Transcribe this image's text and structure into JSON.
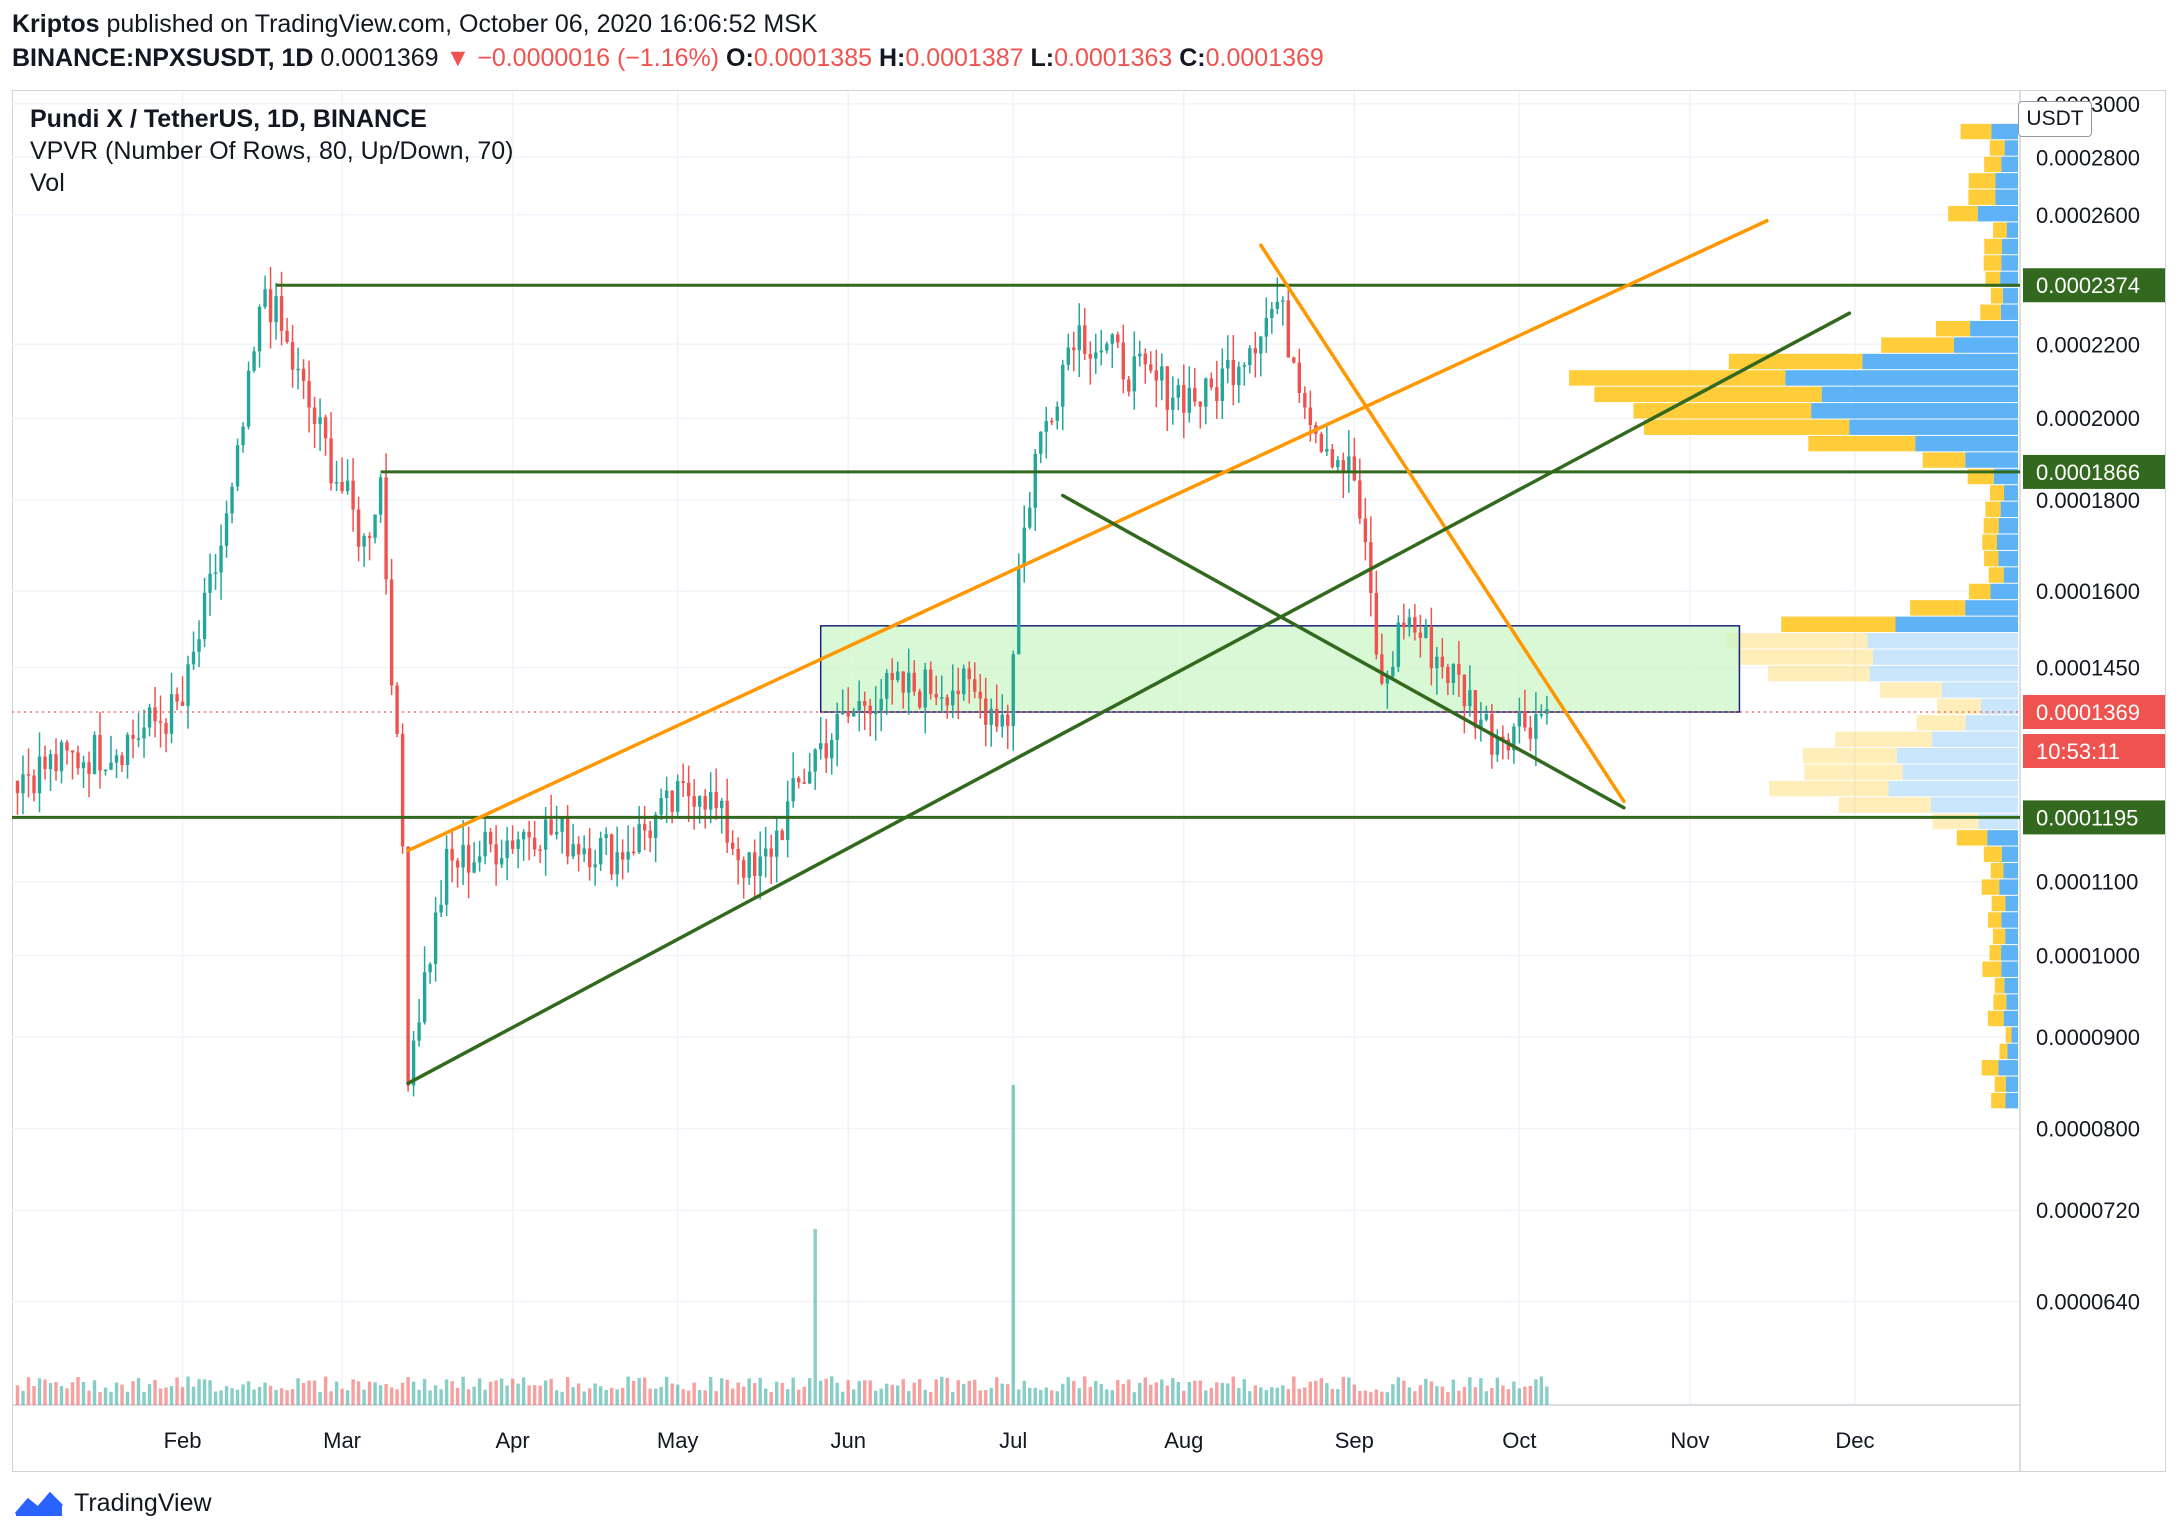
{
  "header": {
    "author": "Kriptos",
    "published_text": "published on TradingView.com, October 06, 2020 16:06:52 MSK",
    "symbol": "BINANCE:NPXSUSDT, 1D",
    "last": "0.0001369",
    "change": "▼ −0.0000016 (−1.16%)",
    "o_label": "O:",
    "o": "0.0001385",
    "h_label": "H:",
    "h": "0.0001387",
    "l_label": "L:",
    "l": "0.0001363",
    "c_label": "C:",
    "c": "0.0001369"
  },
  "legend": {
    "title": "Pundi X / TetherUS, 1D, BINANCE",
    "indicator": "VPVR (Number Of Rows, 80, Up/Down, 70)",
    "volume": "Vol"
  },
  "currency_button": "USDT",
  "footer": {
    "brand": "TradingView"
  },
  "colors": {
    "up": "#26a69a",
    "down": "#ef5350",
    "green_line": "#33691e",
    "orange_line": "#ff9800",
    "zone_fill": "#ccf5c7",
    "zone_border": "#1a237e",
    "vp_blue": "#42a5f5",
    "vp_orange": "#ffc107"
  },
  "chart_data": {
    "type": "candlestick",
    "title": "Pundi X / TetherUS, 1D, BINANCE",
    "y_scale": "log",
    "ylim": [
      5.6e-05,
      0.000305
    ],
    "x_range": [
      "2020-01-01",
      "2020-12-31"
    ],
    "x_tick_labels": [
      "Feb",
      "Mar",
      "Apr",
      "May",
      "Jun",
      "Jul",
      "Aug",
      "Sep",
      "Oct",
      "Nov",
      "Dec"
    ],
    "x_tick_dates": [
      "2020-02-01",
      "2020-03-01",
      "2020-04-01",
      "2020-05-01",
      "2020-06-01",
      "2020-07-01",
      "2020-08-01",
      "2020-09-01",
      "2020-10-01",
      "2020-11-01",
      "2020-12-01"
    ],
    "y_tick_values": [
      0.0003,
      0.00028,
      0.00026,
      0.00022,
      0.0002,
      0.00018,
      0.00016,
      0.000145,
      0.00011,
      0.0001,
      9e-05,
      8e-05,
      7.2e-05,
      6.4e-05
    ],
    "y_tick_labels": [
      "0.0003000",
      "0.0002800",
      "0.0002600",
      "0.0002200",
      "0.0002000",
      "0.0001800",
      "0.0001600",
      "0.0001450",
      "0.0001100",
      "0.0001000",
      "0.0000900",
      "0.0000800",
      "0.0000720",
      "0.0000640"
    ],
    "price_tags": [
      {
        "value": 0.0002374,
        "label": "0.0002374",
        "color": "#33691e"
      },
      {
        "value": 0.0001866,
        "label": "0.0001866",
        "color": "#33691e"
      },
      {
        "value": 0.0001369,
        "label": "0.0001369",
        "color": "#ef5350"
      },
      {
        "value": 0.0001195,
        "label": "0.0001195",
        "color": "#33691e"
      }
    ],
    "countdown": "10:53:11",
    "last_price": 0.0001369,
    "key_points": [
      {
        "date": "2020-01-01",
        "close": 0.000126
      },
      {
        "date": "2020-01-20",
        "close": 0.000131
      },
      {
        "date": "2020-02-01",
        "close": 0.000138
      },
      {
        "date": "2020-02-10",
        "close": 0.00018
      },
      {
        "date": "2020-02-16",
        "close": 0.000237
      },
      {
        "date": "2020-02-22",
        "close": 0.00021
      },
      {
        "date": "2020-03-05",
        "close": 0.00017
      },
      {
        "date": "2020-03-08",
        "close": 0.000185
      },
      {
        "date": "2020-03-12",
        "close": 0.000115
      },
      {
        "date": "2020-03-13",
        "close": 8.7e-05
      },
      {
        "date": "2020-03-20",
        "close": 0.000112
      },
      {
        "date": "2020-04-05",
        "close": 0.000118
      },
      {
        "date": "2020-04-20",
        "close": 0.000114
      },
      {
        "date": "2020-05-05",
        "close": 0.000125
      },
      {
        "date": "2020-05-15",
        "close": 0.00011
      },
      {
        "date": "2020-05-26",
        "close": 0.00013
      },
      {
        "date": "2020-06-05",
        "close": 0.00014
      },
      {
        "date": "2020-06-20",
        "close": 0.000142
      },
      {
        "date": "2020-06-30",
        "close": 0.000136
      },
      {
        "date": "2020-07-02",
        "close": 0.000165
      },
      {
        "date": "2020-07-05",
        "close": 0.00019
      },
      {
        "date": "2020-07-12",
        "close": 0.000225
      },
      {
        "date": "2020-07-25",
        "close": 0.00021
      },
      {
        "date": "2020-08-05",
        "close": 0.000205
      },
      {
        "date": "2020-08-18",
        "close": 0.000232
      },
      {
        "date": "2020-08-25",
        "close": 0.000198
      },
      {
        "date": "2020-09-01",
        "close": 0.000185
      },
      {
        "date": "2020-09-04",
        "close": 0.000158
      },
      {
        "date": "2020-09-06",
        "close": 0.00014
      },
      {
        "date": "2020-09-10",
        "close": 0.000155
      },
      {
        "date": "2020-09-20",
        "close": 0.000142
      },
      {
        "date": "2020-09-26",
        "close": 0.000133
      },
      {
        "date": "2020-10-05",
        "close": 0.000137
      }
    ],
    "volume_spikes": [
      {
        "date": "2020-05-26",
        "level": 0.55
      },
      {
        "date": "2020-07-01",
        "level": 1.0
      }
    ],
    "horizontal_levels": [
      0.0002374,
      0.0001866,
      0.0001195
    ],
    "zone": {
      "from": "2020-05-27",
      "to": "2020-11-10",
      "top": 0.000153,
      "bottom": 0.0001369
    },
    "trend_lines": [
      {
        "color": "orange",
        "from": {
          "date": "2020-03-13",
          "price": 0.0001145
        },
        "to": {
          "date": "2020-11-15",
          "price": 0.000258
        }
      },
      {
        "color": "orange",
        "from": {
          "date": "2020-08-15",
          "price": 0.00025
        },
        "to": {
          "date": "2020-10-20",
          "price": 0.000122
        }
      },
      {
        "color": "green",
        "from": {
          "date": "2020-03-13",
          "price": 8.48e-05
        },
        "to": {
          "date": "2020-11-30",
          "price": 0.000229
        }
      },
      {
        "color": "green",
        "from": {
          "date": "2020-07-10",
          "price": 0.000181
        },
        "to": {
          "date": "2020-10-20",
          "price": 0.000121
        }
      }
    ]
  }
}
